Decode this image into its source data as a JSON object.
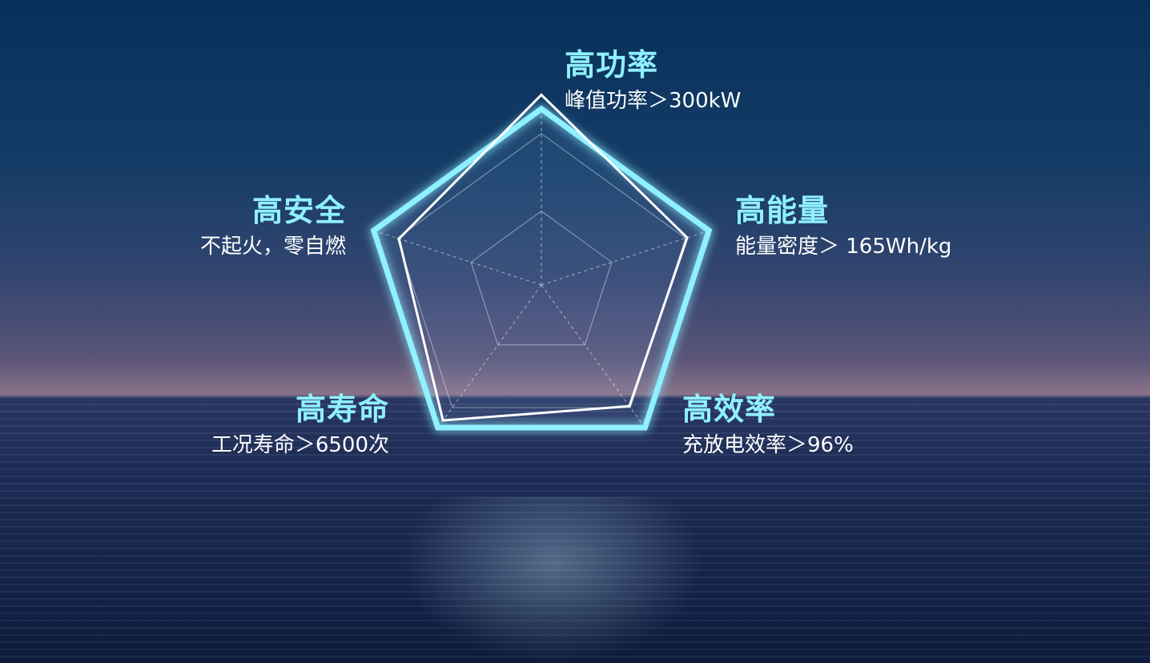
{
  "chart_data": {
    "type": "radar",
    "axes": [
      {
        "title": "高功率",
        "subtitle": "峰值功率＞300kW"
      },
      {
        "title": "高能量",
        "subtitle": "能量密度＞ 165Wh/kg"
      },
      {
        "title": "高效率",
        "subtitle": "充放电效率＞96%"
      },
      {
        "title": "高寿命",
        "subtitle": "工况寿命＞6500次"
      },
      {
        "title": "高安全",
        "subtitle": "不起火，零自燃"
      }
    ],
    "grid_levels": [
      0.42,
      0.86
    ],
    "series": [
      {
        "values": [
          1.0,
          1.0,
          1.0,
          1.0,
          1.0
        ],
        "color": "#8ff0ff"
      },
      {
        "values": [
          1.08,
          0.87,
          0.85,
          0.95,
          0.85
        ],
        "color": "#ffffff"
      }
    ]
  },
  "colors": {
    "title": "#8ff0ff",
    "text": "#ffffff"
  }
}
